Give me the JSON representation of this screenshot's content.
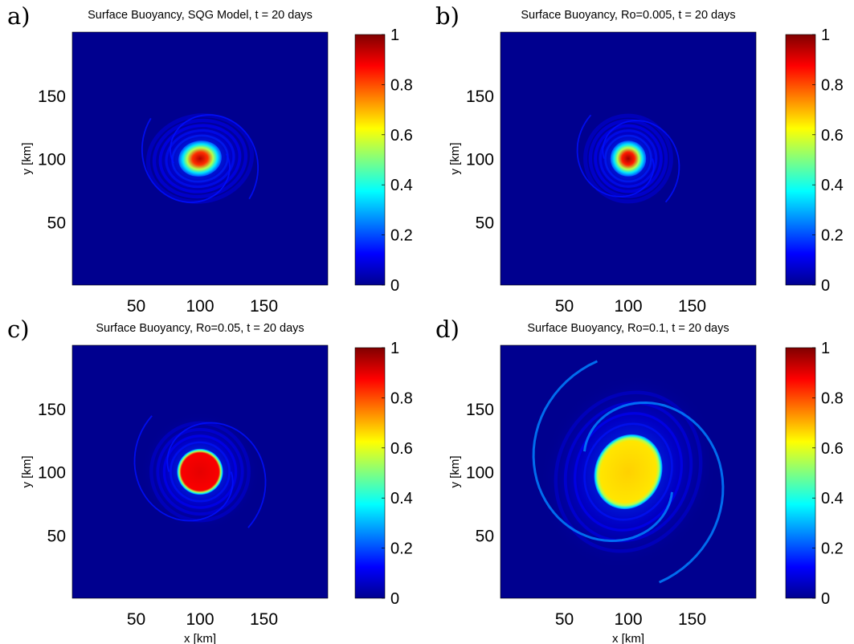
{
  "colors": {
    "jet_stops": [
      "#00008f",
      "#0000ff",
      "#0080ff",
      "#00ffff",
      "#80ff80",
      "#ffff00",
      "#ff8000",
      "#ff0000",
      "#800000"
    ],
    "background": "#00008f"
  },
  "colorbar": {
    "min": 0,
    "max": 1,
    "ticks": [
      "0",
      "0.2",
      "0.4",
      "0.6",
      "0.8",
      "1"
    ]
  },
  "chart_data": [
    {
      "type": "heatmap",
      "letter": "a)",
      "title": "Surface Buoyancy, SQG Model, t = 20 days",
      "ylabel": "y [km]",
      "xlabel": "",
      "xticks": [
        "50",
        "100",
        "150"
      ],
      "yticks": [
        "50",
        "100",
        "150"
      ],
      "xlim": [
        0,
        200
      ],
      "ylim": [
        0,
        200
      ],
      "clim": [
        0,
        1
      ],
      "features": {
        "vortex_center_km": [
          100,
          100
        ],
        "core_peak_value": 0.95,
        "core_radius_km": [
          17,
          14
        ],
        "core_tilt_deg": -10,
        "style": "smooth"
      }
    },
    {
      "type": "heatmap",
      "letter": "b)",
      "title": "Surface Buoyancy, Ro=0.005, t = 20 days",
      "ylabel": "y [km]",
      "xlabel": "",
      "xticks": [
        "50",
        "100",
        "150"
      ],
      "yticks": [
        "50",
        "100",
        "150"
      ],
      "xlim": [
        0,
        200
      ],
      "ylim": [
        0,
        200
      ],
      "clim": [
        0,
        1
      ],
      "features": {
        "vortex_center_km": [
          100,
          100
        ],
        "core_peak_value": 0.97,
        "core_radius_km": [
          14,
          14
        ],
        "core_tilt_deg": 0,
        "style": "smooth"
      }
    },
    {
      "type": "heatmap",
      "letter": "c)",
      "title": "Surface Buoyancy, Ro=0.05, t = 20 days",
      "ylabel": "y [km]",
      "xlabel": "",
      "xticks": [
        "50",
        "100",
        "150"
      ],
      "yticks": [
        "50",
        "100",
        "150"
      ],
      "xlim": [
        0,
        200
      ],
      "ylim": [
        0,
        200
      ],
      "clim": [
        0,
        1
      ],
      "features": {
        "vortex_center_km": [
          100,
          100
        ],
        "core_peak_value": 0.9,
        "core_radius_km": [
          18,
          18
        ],
        "core_tilt_deg": 0,
        "style": "flat"
      }
    },
    {
      "type": "heatmap",
      "letter": "d)",
      "title": "Surface Buoyancy, Ro=0.1, t = 20 days",
      "ylabel": "y [km]",
      "xlabel": "x [km]",
      "xticks": [
        "50",
        "100",
        "150"
      ],
      "yticks": [
        "50",
        "100",
        "150"
      ],
      "xlim": [
        0,
        200
      ],
      "ylim": [
        0,
        200
      ],
      "clim": [
        0,
        1
      ],
      "features": {
        "vortex_center_km": [
          100,
          100
        ],
        "core_peak_value": 0.67,
        "core_radius_km": [
          26,
          30
        ],
        "core_tilt_deg": 25,
        "style": "flat"
      }
    }
  ],
  "bottom_left_xlabel": "x [km]"
}
